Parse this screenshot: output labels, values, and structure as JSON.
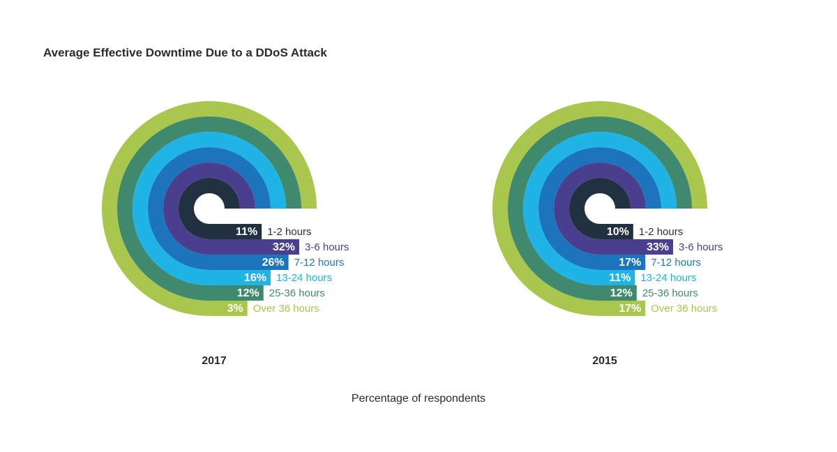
{
  "title": "Average Effective Downtime Due to a DDoS Attack",
  "footer": "Percentage of respondents",
  "chart_data": [
    {
      "type": "radial-bar",
      "title": "2017",
      "categories": [
        "1-2 hours",
        "3-6 hours",
        "7-12 hours",
        "13-24 hours",
        "25-36 hours",
        "Over 36 hours"
      ],
      "values": [
        11,
        32,
        26,
        16,
        12,
        3
      ],
      "labels": [
        "11%",
        "32%",
        "26%",
        "16%",
        "12%",
        "3%"
      ],
      "colors": [
        "#22313f",
        "#4a3f8f",
        "#1c75bc",
        "#1fb3e6",
        "#3f8a6e",
        "#a9c64d"
      ]
    },
    {
      "type": "radial-bar",
      "title": "2015",
      "categories": [
        "1-2 hours",
        "3-6 hours",
        "7-12 hours",
        "13-24 hours",
        "25-36 hours",
        "Over 36 hours"
      ],
      "values": [
        10,
        33,
        17,
        11,
        12,
        17
      ],
      "labels": [
        "10%",
        "33%",
        "17%",
        "11%",
        "12%",
        "17%"
      ],
      "colors": [
        "#22313f",
        "#4a3f8f",
        "#1c75bc",
        "#1fb3e6",
        "#3f8a6e",
        "#a9c64d"
      ]
    }
  ]
}
